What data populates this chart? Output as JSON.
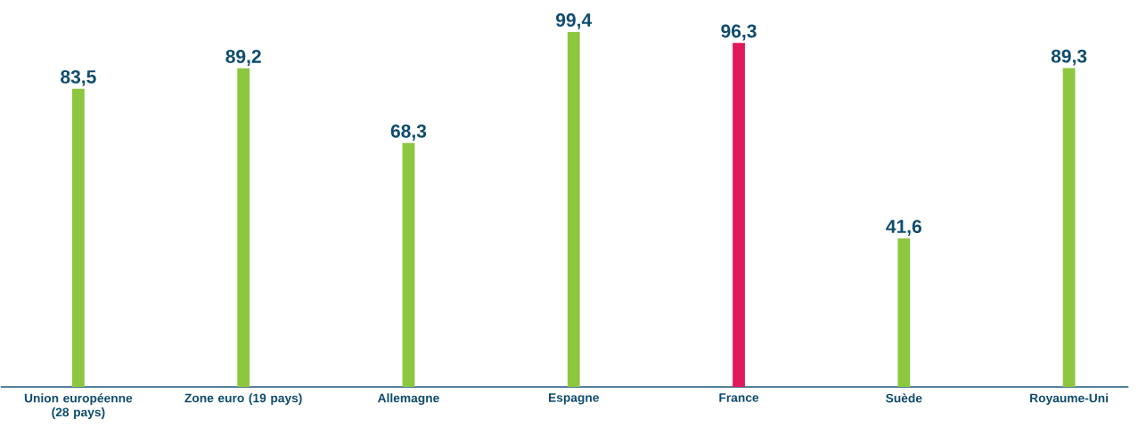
{
  "chart_data": {
    "type": "bar",
    "categories": [
      "Union européenne (28 pays)",
      "Zone euro (19 pays)",
      "Allemagne",
      "Espagne",
      "France",
      "Suède",
      "Royaume-Uni"
    ],
    "values": [
      83.5,
      89.2,
      68.3,
      99.4,
      96.3,
      41.6,
      89.3
    ],
    "value_labels": [
      "83,5",
      "89,2",
      "68,3",
      "99,4",
      "96,3",
      "41,6",
      "89,3"
    ],
    "colors": [
      "#8dc63f",
      "#8dc63f",
      "#8dc63f",
      "#8dc63f",
      "#e0195a",
      "#8dc63f",
      "#8dc63f"
    ]
  }
}
